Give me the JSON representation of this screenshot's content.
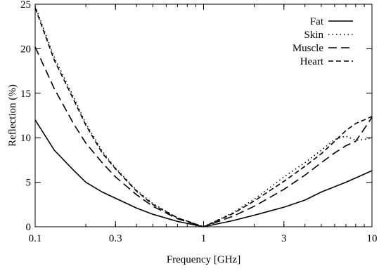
{
  "chart_data": {
    "type": "line",
    "xlabel": "Frequency [GHz]",
    "ylabel": "Reflection (%)",
    "xscale": "log",
    "xlim": [
      0.1,
      10
    ],
    "ylim": [
      0,
      25
    ],
    "xticks": [
      0.1,
      0.3,
      1,
      3,
      10
    ],
    "xtick_labels": [
      "0.1",
      "0.3",
      "1",
      "3",
      "10"
    ],
    "yticks": [
      0,
      5,
      10,
      15,
      20,
      25
    ],
    "ytick_labels": [
      "0",
      "5",
      "10",
      "15",
      "20",
      "25"
    ],
    "grid": false,
    "legend_position": "top-right",
    "series": [
      {
        "name": "Fat",
        "style": "solid",
        "x": [
          0.1,
          0.13,
          0.17,
          0.2,
          0.25,
          0.3,
          0.4,
          0.5,
          0.7,
          1.0,
          1.5,
          2.0,
          3.0,
          4.0,
          5.0,
          7.0,
          10.0
        ],
        "y": [
          12.0,
          8.6,
          6.3,
          5.0,
          3.9,
          3.2,
          2.1,
          1.4,
          0.6,
          0.0,
          0.7,
          1.3,
          2.2,
          3.0,
          3.9,
          5.0,
          6.3
        ]
      },
      {
        "name": "Skin",
        "style": "dotted",
        "x": [
          0.1,
          0.13,
          0.17,
          0.2,
          0.25,
          0.3,
          0.4,
          0.5,
          0.7,
          1.0,
          1.5,
          2.0,
          3.0,
          4.0,
          5.0,
          6.0,
          7.0,
          8.0,
          9.0,
          10.0
        ],
        "y": [
          24.8,
          19.0,
          14.5,
          11.6,
          8.5,
          6.6,
          4.1,
          2.6,
          1.0,
          0.0,
          1.6,
          3.1,
          5.6,
          7.2,
          8.6,
          9.8,
          10.2,
          9.7,
          9.8,
          10.0
        ]
      },
      {
        "name": "Muscle",
        "style": "dashed",
        "x": [
          0.1,
          0.13,
          0.17,
          0.2,
          0.25,
          0.3,
          0.4,
          0.5,
          0.7,
          1.0,
          1.5,
          2.0,
          3.0,
          4.0,
          5.0,
          6.0,
          7.0,
          8.0,
          9.0,
          10.0
        ],
        "y": [
          20.2,
          15.5,
          11.5,
          9.4,
          7.2,
          5.6,
          3.6,
          2.3,
          0.9,
          0.0,
          1.2,
          2.3,
          4.2,
          5.8,
          7.2,
          8.3,
          9.1,
          9.6,
          11.0,
          12.3
        ]
      },
      {
        "name": "Heart",
        "style": "short-dashed",
        "x": [
          0.1,
          0.13,
          0.17,
          0.2,
          0.25,
          0.3,
          0.4,
          0.5,
          0.7,
          1.0,
          1.5,
          2.0,
          3.0,
          4.0,
          5.0,
          6.0,
          7.0,
          8.0,
          9.0,
          10.0
        ],
        "y": [
          24.6,
          18.7,
          14.2,
          11.4,
          8.3,
          6.5,
          4.0,
          2.5,
          1.0,
          0.0,
          1.5,
          2.9,
          5.1,
          6.8,
          8.2,
          9.6,
          10.8,
          11.6,
          12.0,
          12.4
        ]
      }
    ]
  }
}
